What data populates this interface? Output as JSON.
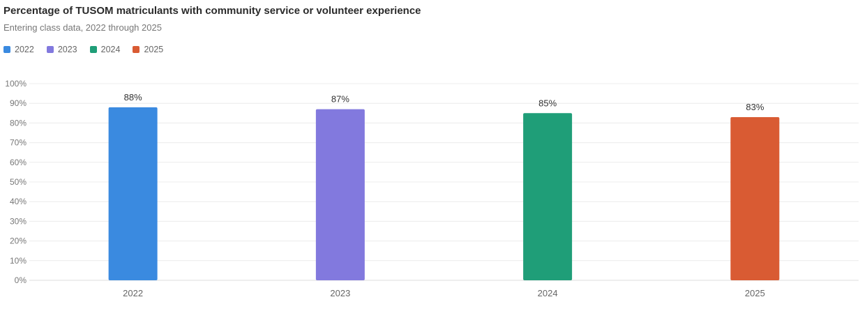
{
  "chart_data": {
    "type": "bar",
    "title": "Percentage of TUSOM matriculants with community service or volunteer experience",
    "subtitle": "Entering class data, 2022 through 2025",
    "categories": [
      "2022",
      "2023",
      "2024",
      "2025"
    ],
    "values": [
      88,
      87,
      85,
      83
    ],
    "value_labels": [
      "88%",
      "87%",
      "85%",
      "83%"
    ],
    "colors": [
      "#3a8ae0",
      "#8279de",
      "#1f9e78",
      "#d95b33"
    ],
    "legend": [
      {
        "name": "2022",
        "color": "#3a8ae0"
      },
      {
        "name": "2023",
        "color": "#8279de"
      },
      {
        "name": "2024",
        "color": "#1f9e78"
      },
      {
        "name": "2025",
        "color": "#d95b33"
      }
    ],
    "legend_position": "top-left",
    "ylim": [
      0,
      100
    ],
    "yticks": [
      0,
      10,
      20,
      30,
      40,
      50,
      60,
      70,
      80,
      90,
      100
    ],
    "ytick_labels": [
      "0%",
      "10%",
      "20%",
      "30%",
      "40%",
      "50%",
      "60%",
      "70%",
      "80%",
      "90%",
      "100%"
    ],
    "grid": true
  }
}
